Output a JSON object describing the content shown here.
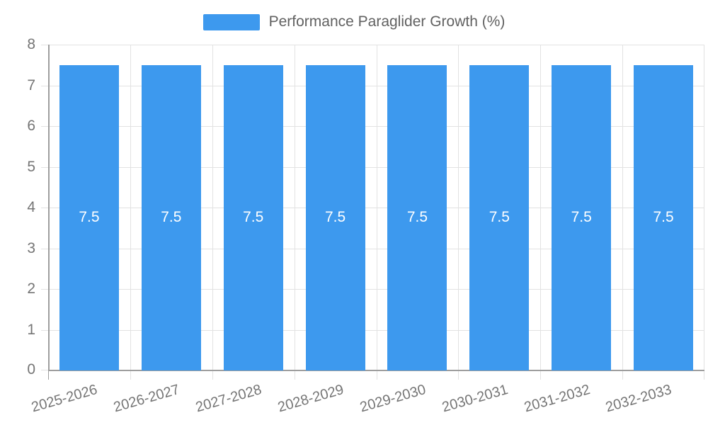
{
  "chart_data": {
    "type": "bar",
    "title": "Performance Paraglider Growth (%)",
    "categories": [
      "2025-2026",
      "2026-2027",
      "2027-2028",
      "2028-2029",
      "2029-2030",
      "2030-2031",
      "2031-2032",
      "2032-2033"
    ],
    "values": [
      7.5,
      7.5,
      7.5,
      7.5,
      7.5,
      7.5,
      7.5,
      7.5
    ],
    "bar_labels": [
      "7.5",
      "7.5",
      "7.5",
      "7.5",
      "7.5",
      "7.5",
      "7.5",
      "7.5"
    ],
    "xlabel": "",
    "ylabel": "",
    "ylim": [
      0,
      8
    ],
    "yticks": [
      "0",
      "1",
      "2",
      "3",
      "4",
      "5",
      "6",
      "7",
      "8"
    ],
    "grid": true,
    "legend_position": "top",
    "legend_entries": [
      "Performance Paraglider Growth (%)"
    ],
    "colors": {
      "bar": "#3d99ee",
      "bar_label": "#ffffff",
      "title": "#616161",
      "tick_label": "#757575",
      "gridline": "#e2e2e2",
      "axis_line": "#9e9e9e",
      "background": "#ffffff"
    }
  }
}
